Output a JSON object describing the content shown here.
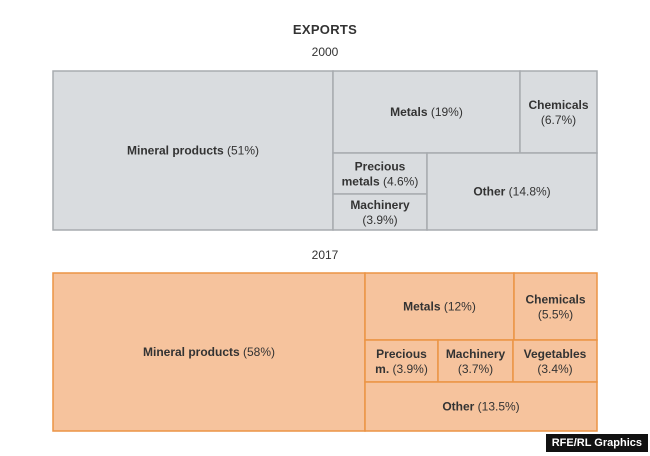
{
  "title": "EXPORTS",
  "credit": "RFE/RL Graphics",
  "colors": {
    "fill_2000": "#d9dcdf",
    "stroke_2000": "#a7abaf",
    "fill_2017": "#f6c39d",
    "stroke_2017": "#eb9445"
  },
  "chart_data": [
    {
      "type": "treemap",
      "title": "2000",
      "items": [
        {
          "name": "Mineral products",
          "value_label": "(51%)",
          "value": 51
        },
        {
          "name": "Metals",
          "value_label": "(19%)",
          "value": 19
        },
        {
          "name": "Chemicals",
          "value_label": "(6.7%)",
          "value": 6.7
        },
        {
          "name": "Precious metals",
          "value_label": "(4.6%)",
          "value": 4.6
        },
        {
          "name": "Machinery",
          "value_label": "(3.9%)",
          "value": 3.9
        },
        {
          "name": "Other",
          "value_label": "(14.8%)",
          "value": 14.8
        }
      ]
    },
    {
      "type": "treemap",
      "title": "2017",
      "items": [
        {
          "name": "Mineral products",
          "value_label": "(58%)",
          "value": 58
        },
        {
          "name": "Metals",
          "value_label": "(12%)",
          "value": 12
        },
        {
          "name": "Chemicals",
          "value_label": "(5.5%)",
          "value": 5.5
        },
        {
          "name": "Precious m.",
          "value_label": "(3.9%)",
          "value": 3.9
        },
        {
          "name": "Machinery",
          "value_label": "(3.7%)",
          "value": 3.7
        },
        {
          "name": "Vegetables",
          "value_label": "(3.4%)",
          "value": 3.4
        },
        {
          "name": "Other",
          "value_label": "(13.5%)",
          "value": 13.5
        }
      ]
    }
  ]
}
